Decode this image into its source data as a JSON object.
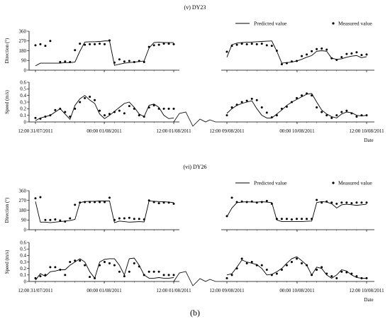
{
  "caption": "(b)",
  "colors": {
    "line": "#000000",
    "marker": "#000000",
    "axis": "#000000",
    "background": "#ffffff"
  },
  "chart_data": [
    {
      "type": "line",
      "title": "(v) DY23",
      "legend": {
        "position": "top-right",
        "items": [
          "Predicted value",
          "Measured value"
        ]
      },
      "xlabel": "Date",
      "x_tick_labels": [
        "12:00 31/07/2011",
        "00:00 01/08/2011",
        "12:00 01/08/2011",
        "12:00 09/08/2011",
        "00:00 10/08/2011",
        "12:00 10/08/2011"
      ],
      "x_segments": [
        {
          "start": "12:00 31/07/2011",
          "end": "12:00 01/08/2011",
          "step_hours": 1
        },
        {
          "start": "12:00 09/08/2011",
          "end": "12:00 10/08/2011",
          "step_hours": 1
        }
      ],
      "axis_break": true,
      "panels": [
        {
          "ylabel": "Direction (°)",
          "ylim": [
            0,
            360
          ],
          "yticks": [
            0,
            90,
            180,
            270,
            360
          ],
          "series": [
            {
              "name": "Predicted value",
              "style": "line",
              "segments": [
                [
                  40,
                  65,
                  65,
                  65,
                  65,
                  65,
                  70,
                  70,
                  75,
                  175,
                  260,
                  262,
                  262,
                  265,
                  270,
                  270,
                  45,
                  55,
                  65,
                  70,
                  75,
                  80,
                  85,
                  205,
                  255,
                  258,
                  255,
                  255,
                  255
                ],
                [
                  120,
                  235,
                  250,
                  255,
                  258,
                  260,
                  262,
                  265,
                  268,
                  270,
                  175,
                  65,
                  70,
                  75,
                  85,
                  100,
                  120,
                  135,
                  175,
                  180,
                  175,
                  110,
                  100,
                  105,
                  120,
                  130,
                  135,
                  115,
                  125
                ]
              ]
            },
            {
              "name": "Measured value",
              "style": "markers",
              "segments": [
                [
                  230,
                  240,
                  225,
                  270,
                  null,
                  75,
                  80,
                  75,
                  185,
                  245,
                  235,
                  240,
                  240,
                  245,
                  240,
                  275,
                  70,
                  100,
                  80,
                  85,
                  75,
                  85,
                  75,
                  215,
                  230,
                  235,
                  245,
                  245,
                  240
                ],
                [
                  170,
                  225,
                  235,
                  245,
                  240,
                  245,
                  240,
                  245,
                  230,
                  225,
                  180,
                  55,
                  65,
                  80,
                  85,
                  130,
                  145,
                  175,
                  195,
                  200,
                  190,
                  110,
                  95,
                  120,
                  150,
                  155,
                  165,
                  140,
                  145
                ]
              ]
            }
          ]
        },
        {
          "ylabel": "Speed (m/s)",
          "ylim": [
            0,
            0.6
          ],
          "yticks": [
            0,
            0.1,
            0.2,
            0.3,
            0.4,
            0.5,
            0.6
          ],
          "series": [
            {
              "name": "Predicted value",
              "style": "line",
              "segments": [
                [
                  0.02,
                  0.06,
                  0.08,
                  0.1,
                  0.15,
                  0.2,
                  0.12,
                  0.04,
                  0.25,
                  0.35,
                  0.4,
                  0.33,
                  0.28,
                  0.12,
                  0.05,
                  0.1,
                  0.16,
                  0.22,
                  0.28,
                  0.3,
                  0.22,
                  0.12,
                  0.08,
                  0.25,
                  0.27,
                  0.22,
                  0.1,
                  0.05,
                  0.06
                ],
                [
                  0.13,
                  0.2,
                  0.25,
                  0.28,
                  0.3,
                  0.32,
                  0.2,
                  0.1,
                  0.06,
                  0.06,
                  0.12,
                  0.18,
                  0.25,
                  0.3,
                  0.34,
                  0.38,
                  0.42,
                  0.43,
                  0.3,
                  0.18,
                  0.12,
                  0.08,
                  0.06,
                  0.12,
                  0.15,
                  0.14,
                  0.1,
                  0.09,
                  0.1
                ]
              ]
            },
            {
              "name": "Measured value",
              "style": "markers",
              "segments": [
                [
                  0.06,
                  0.05,
                  0.08,
                  0.1,
                  0.18,
                  0.2,
                  0.15,
                  0.08,
                  0.2,
                  0.3,
                  0.36,
                  0.38,
                  0.33,
                  0.17,
                  0.1,
                  0.12,
                  0.15,
                  0.17,
                  0.13,
                  0.24,
                  0.2,
                  0.1,
                  0.08,
                  0.22,
                  0.25,
                  0.2,
                  0.2,
                  0.2,
                  0.2
                ],
                [
                  0.1,
                  0.22,
                  0.26,
                  0.3,
                  0.32,
                  0.35,
                  0.33,
                  0.22,
                  0.14,
                  0.07,
                  0.1,
                  0.2,
                  0.23,
                  0.3,
                  0.36,
                  0.4,
                  0.43,
                  0.4,
                  0.22,
                  0.15,
                  0.1,
                  0.06,
                  0.1,
                  0.15,
                  0.17,
                  0.13,
                  0.08,
                  0.1,
                  0.1
                ]
              ]
            }
          ]
        }
      ]
    },
    {
      "type": "line",
      "title": "(vi) DY26",
      "legend": {
        "position": "top-right",
        "items": [
          "Predicted value",
          "Measured value"
        ]
      },
      "xlabel": "Date",
      "x_tick_labels": [
        "12:00 31/07/2011",
        "00:00 01/08/2011",
        "12:00 01/08/2011",
        "12:00 09/08/2011",
        "00:00 10/08/2011",
        "12:00 10/08/2011"
      ],
      "x_segments": [
        {
          "start": "12:00 31/07/2011",
          "end": "12:00 01/08/2011",
          "step_hours": 1
        },
        {
          "start": "12:00 09/08/2011",
          "end": "12:00 10/08/2011",
          "step_hours": 1
        }
      ],
      "axis_break": true,
      "panels": [
        {
          "ylabel": "Direction (°)",
          "ylim": [
            0,
            360
          ],
          "yticks": [
            0,
            90,
            180,
            270,
            360
          ],
          "series": [
            {
              "name": "Predicted value",
              "style": "line",
              "segments": [
                [
                  260,
                  70,
                  70,
                  65,
                  70,
                  75,
                  80,
                  85,
                  95,
                  250,
                  260,
                  262,
                  262,
                  265,
                  265,
                  265,
                  65,
                  80,
                  75,
                  70,
                  72,
                  75,
                  72,
                  265,
                  262,
                  260,
                  258,
                  255,
                  250
                ],
                [
                  120,
                  200,
                  250,
                  255,
                  258,
                  255,
                  255,
                  258,
                  255,
                  250,
                  90,
                  75,
                  75,
                  75,
                  75,
                  75,
                  78,
                  80,
                  250,
                  260,
                  255,
                  240,
                  200,
                  230,
                  235,
                  230,
                  225,
                  230,
                  235
                ]
              ]
            },
            {
              "name": "Measured value",
              "style": "markers",
              "segments": [
                [
                  290,
                  300,
                  90,
                  90,
                  95,
                  85,
                  75,
                  105,
                  230,
                  250,
                  255,
                  255,
                  255,
                  255,
                  255,
                  295,
                  90,
                  105,
                  105,
                  110,
                  100,
                  100,
                  95,
                  270,
                  255,
                  245,
                  250,
                  250,
                  240
                ],
                [
                  125,
                  295,
                  255,
                  260,
                  255,
                  260,
                  250,
                  255,
                  265,
                  240,
                  100,
                  100,
                  100,
                  95,
                  100,
                  100,
                  100,
                  100,
                  275,
                  250,
                  260,
                  250,
                  240,
                  250,
                  250,
                  245,
                  250,
                  250,
                  250
                ]
              ]
            }
          ]
        },
        {
          "ylabel": "Speed (m/s)",
          "ylim": [
            0,
            0.6
          ],
          "yticks": [
            0,
            0.1,
            0.2,
            0.3,
            0.4,
            0.5,
            0.6
          ],
          "series": [
            {
              "name": "Predicted value",
              "style": "line",
              "segments": [
                [
                  0.02,
                  0.12,
                  0.08,
                  0.15,
                  0.16,
                  0.18,
                  0.18,
                  0.25,
                  0.3,
                  0.35,
                  0.3,
                  0.15,
                  0.05,
                  0.3,
                  0.34,
                  0.35,
                  0.35,
                  0.25,
                  0.1,
                  0.35,
                  0.36,
                  0.25,
                  0.1,
                  0.05,
                  0.05,
                  0.06,
                  0.05,
                  0.05,
                  0.06
                ],
                [
                  0.1,
                  0.12,
                  0.22,
                  0.33,
                  0.3,
                  0.28,
                  0.26,
                  0.2,
                  0.1,
                  0.11,
                  0.15,
                  0.2,
                  0.28,
                  0.35,
                  0.38,
                  0.32,
                  0.25,
                  0.1,
                  0.22,
                  0.2,
                  0.1,
                  0.05,
                  0.1,
                  0.18,
                  0.16,
                  0.1,
                  0.06,
                  0.05,
                  0.05
                ]
              ]
            },
            {
              "name": "Measured value",
              "style": "markers",
              "segments": [
                [
                  0.05,
                  0.08,
                  0.1,
                  0.22,
                  0.22,
                  0.18,
                  0.1,
                  0.3,
                  0.32,
                  0.32,
                  0.25,
                  0.07,
                  0.05,
                  0.25,
                  0.3,
                  0.28,
                  0.25,
                  0.15,
                  0.08,
                  0.15,
                  0.28,
                  0.23,
                  0.1,
                  0.15,
                  0.15,
                  0.15,
                  0.1,
                  0.1,
                  0.1
                ],
                [
                  0.05,
                  0.1,
                  0.2,
                  0.35,
                  0.28,
                  0.3,
                  0.25,
                  0.25,
                  0.18,
                  0.1,
                  0.12,
                  0.18,
                  0.25,
                  0.3,
                  0.35,
                  0.28,
                  0.25,
                  0.1,
                  0.18,
                  0.22,
                  0.12,
                  0.08,
                  0.05,
                  0.15,
                  0.14,
                  0.12,
                  0.08,
                  0.05,
                  0.05
                ]
              ]
            }
          ]
        }
      ]
    }
  ]
}
